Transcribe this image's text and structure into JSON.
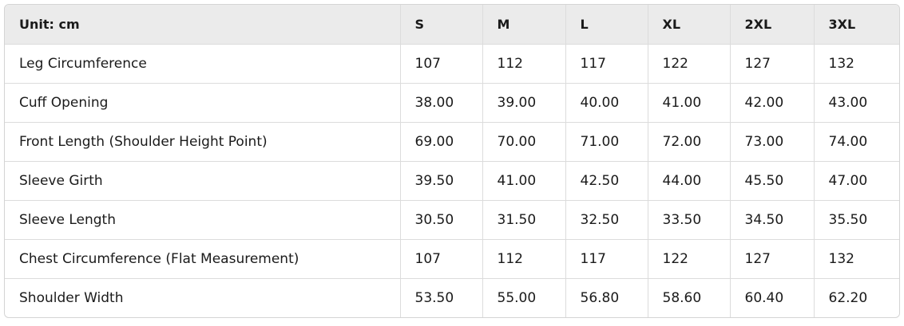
{
  "table": {
    "header": [
      "Unit: cm",
      "S",
      "M",
      "L",
      "XL",
      "2XL",
      "3XL"
    ],
    "rows": [
      [
        "Leg Circumference",
        "107",
        "112",
        "117",
        "122",
        "127",
        "132"
      ],
      [
        "Cuff Opening",
        "38.00",
        "39.00",
        "40.00",
        "41.00",
        "42.00",
        "43.00"
      ],
      [
        "Front Length (Shoulder Height Point)",
        "69.00",
        "70.00",
        "71.00",
        "72.00",
        "73.00",
        "74.00"
      ],
      [
        "Sleeve Girth",
        "39.50",
        "41.00",
        "42.50",
        "44.00",
        "45.50",
        "47.00"
      ],
      [
        "Sleeve Length",
        "30.50",
        "31.50",
        "32.50",
        "33.50",
        "34.50",
        "35.50"
      ],
      [
        "Chest Circumference (Flat Measurement)",
        "107",
        "112",
        "117",
        "122",
        "127",
        "132"
      ],
      [
        "Shoulder Width",
        "53.50",
        "55.00",
        "56.80",
        "58.60",
        "60.40",
        "62.20"
      ]
    ]
  }
}
